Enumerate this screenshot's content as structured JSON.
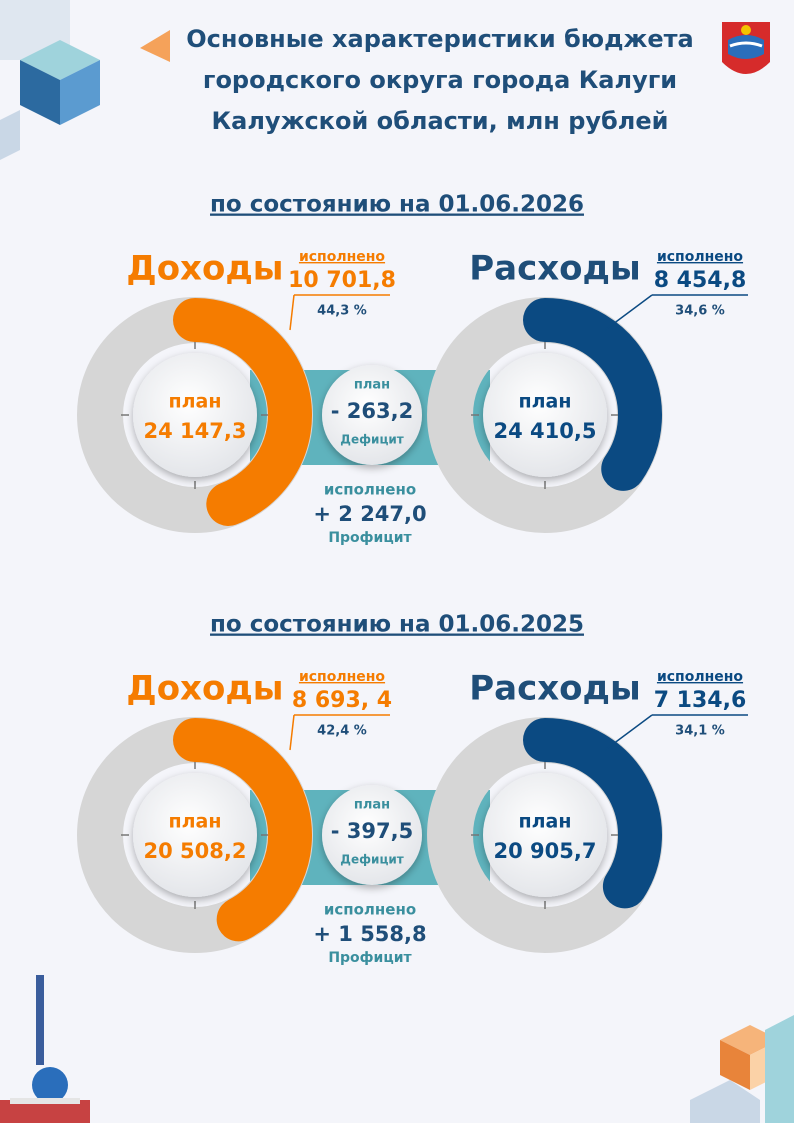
{
  "header": {
    "title_lines": [
      "Основные характеристики бюджета",
      "городского округа города Калуги",
      "Калужской области, млн рублей"
    ]
  },
  "sections": [
    {
      "date_label": "по состоянию на 01.06.2026",
      "income": {
        "label": "Доходы",
        "done_label": "исполнено",
        "done": "10 701,8",
        "percent": {
          "value": 44.3,
          "label": "44,3 %"
        },
        "plan_label": "план",
        "plan": "24 147,3"
      },
      "expense": {
        "label": "Расходы",
        "done_label": "исполнено",
        "done": "8 454,8",
        "percent": {
          "value": 34.6,
          "label": "34,6 %"
        },
        "plan_label": "план",
        "plan": "24 410,5"
      },
      "balance": {
        "plan_label": "план",
        "plan": "- 263,2",
        "plan_kind": "Дефицит",
        "done_label": "исполнено",
        "done": "+ 2 247,0",
        "done_kind": "Профицит"
      }
    },
    {
      "date_label": "по состоянию на 01.06.2025",
      "income": {
        "label": "Доходы",
        "done_label": "исполнено",
        "done": "8 693, 4",
        "percent": {
          "value": 42.4,
          "label": "42,4 %"
        },
        "plan_label": "план",
        "plan": "20 508,2"
      },
      "expense": {
        "label": "Расходы",
        "done_label": "исполнено",
        "done": "7 134,6",
        "percent": {
          "value": 34.1,
          "label": "34,1 %"
        },
        "plan_label": "план",
        "plan": "20 905,7"
      },
      "balance": {
        "plan_label": "план",
        "plan": "- 397,5",
        "plan_kind": "Дефицит",
        "done_label": "исполнено",
        "done": "+ 1 558,8",
        "done_kind": "Профицит"
      }
    }
  ]
}
